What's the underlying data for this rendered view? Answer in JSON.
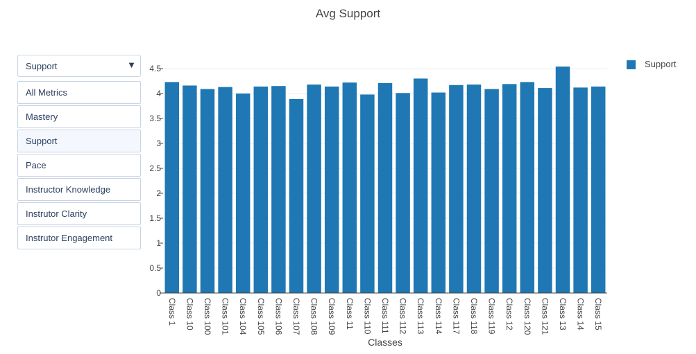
{
  "chart_data": {
    "type": "bar",
    "title": "Avg Support",
    "xlabel": "Classes",
    "ylabel": "",
    "ylim": [
      0,
      4.5
    ],
    "yticks": [
      "0",
      "0.5",
      "1",
      "1.5",
      "2",
      "2.5",
      "3",
      "3.5",
      "4",
      "4.5"
    ],
    "grid": true,
    "legend_position": "top-right",
    "categories": [
      "Class 1",
      "Class 10",
      "Class 100",
      "Class 101",
      "Class 104",
      "Class 105",
      "Class 106",
      "Class 107",
      "Class 108",
      "Class 109",
      "Class 11",
      "Class 110",
      "Class 111",
      "Class 112",
      "Class 113",
      "Class 114",
      "Class 117",
      "Class 118",
      "Class 119",
      "Class 12",
      "Class 120",
      "Class 121",
      "Class 13",
      "Class 14",
      "Class 15"
    ],
    "series": [
      {
        "name": "Support",
        "color": "#1f77b4",
        "values": [
          4.23,
          4.16,
          4.09,
          4.13,
          4.0,
          4.14,
          4.15,
          3.89,
          4.18,
          4.14,
          4.22,
          3.98,
          4.21,
          4.01,
          4.3,
          4.02,
          4.17,
          4.18,
          4.09,
          4.19,
          4.23,
          4.11,
          4.54,
          4.12,
          4.14
        ]
      }
    ]
  },
  "dropdown": {
    "selected": "Support",
    "arrow": "▼",
    "options": [
      "All Metrics",
      "Mastery",
      "Support",
      "Pace",
      "Instructor Knowledge",
      "Instrutor Clarity",
      "Instrutor Engagement"
    ]
  }
}
